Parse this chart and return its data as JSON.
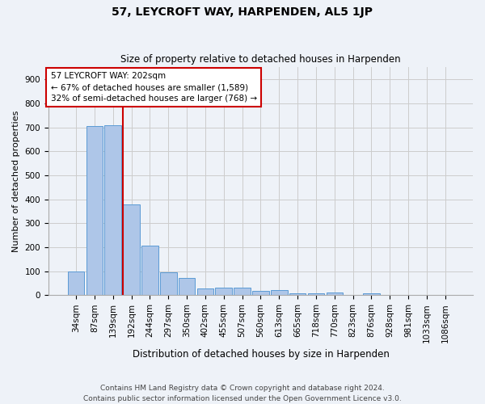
{
  "title": "57, LEYCROFT WAY, HARPENDEN, AL5 1JP",
  "subtitle": "Size of property relative to detached houses in Harpenden",
  "xlabel": "Distribution of detached houses by size in Harpenden",
  "ylabel": "Number of detached properties",
  "categories": [
    "34sqm",
    "87sqm",
    "139sqm",
    "192sqm",
    "244sqm",
    "297sqm",
    "350sqm",
    "402sqm",
    "455sqm",
    "507sqm",
    "560sqm",
    "613sqm",
    "665sqm",
    "718sqm",
    "770sqm",
    "823sqm",
    "876sqm",
    "928sqm",
    "981sqm",
    "1033sqm",
    "1086sqm"
  ],
  "values": [
    100,
    707,
    710,
    377,
    208,
    96,
    72,
    29,
    31,
    33,
    18,
    20,
    9,
    8,
    10,
    0,
    9,
    0,
    0,
    0,
    0
  ],
  "bar_color": "#aec6e8",
  "bar_edge_color": "#5b9bd5",
  "grid_color": "#cccccc",
  "bg_color": "#eef2f8",
  "vline_x_index": 3,
  "vline_color": "#cc0000",
  "annotation_text": "57 LEYCROFT WAY: 202sqm\n← 67% of detached houses are smaller (1,589)\n32% of semi-detached houses are larger (768) →",
  "annotation_box_color": "#ffffff",
  "annotation_box_edge": "#cc0000",
  "footer": "Contains HM Land Registry data © Crown copyright and database right 2024.\nContains public sector information licensed under the Open Government Licence v3.0.",
  "ylim": [
    0,
    950
  ],
  "yticks": [
    0,
    100,
    200,
    300,
    400,
    500,
    600,
    700,
    800,
    900
  ],
  "title_fontsize": 10,
  "subtitle_fontsize": 8.5,
  "xlabel_fontsize": 8.5,
  "ylabel_fontsize": 8,
  "tick_fontsize": 7.5,
  "annotation_fontsize": 7.5,
  "footer_fontsize": 6.5
}
